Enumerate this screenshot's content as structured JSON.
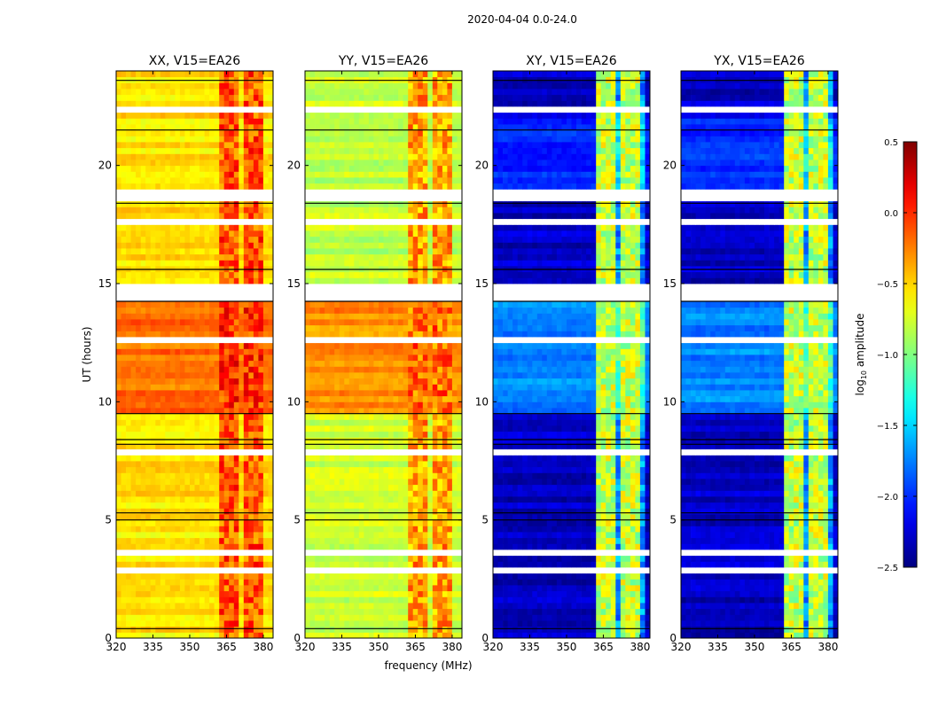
{
  "chart_data": {
    "type": "heatmap",
    "title": "2020-04-04 0.0-24.0",
    "xlabel": "frequency (MHz)",
    "ylabel": "UT (hours)",
    "xlim": [
      320,
      384
    ],
    "ylim": [
      0,
      24
    ],
    "xticks": [
      "320",
      "335",
      "350",
      "365",
      "380"
    ],
    "xtick_values": [
      320,
      335,
      350,
      365,
      380
    ],
    "yticks": [
      "0",
      "5",
      "10",
      "15",
      "20"
    ],
    "ytick_values": [
      0,
      5,
      10,
      15,
      20
    ],
    "colorbar": {
      "label": "log10 amplitude",
      "label_main": "log",
      "label_sub": "10",
      "label_rest": " amplitude",
      "colormap": "jet",
      "range": [
        -2.5,
        0.5
      ],
      "ticks": [
        "0.5",
        "0.0",
        "−0.5",
        "−1.0",
        "−1.5",
        "−2.0",
        "−2.5"
      ],
      "tick_values": [
        0.5,
        0.0,
        -0.5,
        -1.0,
        -1.5,
        -2.0,
        -2.5
      ]
    },
    "flagged_hours": [
      [
        14.4,
        14.95
      ],
      [
        22.25,
        22.45
      ],
      [
        18.7,
        18.8
      ],
      [
        17.6,
        17.7
      ],
      [
        7.8,
        7.9
      ],
      [
        3.5,
        3.6
      ],
      [
        2.9,
        3.0
      ],
      [
        12.5,
        12.6
      ]
    ],
    "black_line_hours": [
      0.4,
      5.0,
      5.3,
      8.2,
      8.4,
      9.5,
      14.25,
      15.6,
      18.4,
      21.5,
      23.6
    ],
    "rfi_bands_mhz": [
      [
        363,
        366
      ],
      [
        367,
        370.5
      ],
      [
        372,
        375.5
      ],
      [
        377,
        380.5
      ]
    ],
    "panels": [
      {
        "title": "XX, V15=EA26",
        "base_levels": [
          {
            "from": 0,
            "to": 9.5,
            "level": -0.55
          },
          {
            "from": 9.5,
            "to": 14.3,
            "level": -0.2
          },
          {
            "from": 14.3,
            "to": 24,
            "level": -0.55
          }
        ],
        "rfi_level": 0.05
      },
      {
        "title": "YY, V15=EA26",
        "base_levels": [
          {
            "from": 0,
            "to": 9.5,
            "level": -0.8
          },
          {
            "from": 9.5,
            "to": 14.3,
            "level": -0.3
          },
          {
            "from": 14.3,
            "to": 24,
            "level": -0.8
          }
        ],
        "rfi_level": -0.1
      },
      {
        "title": "XY, V15=EA26",
        "base_levels": [
          {
            "from": 0,
            "to": 9.5,
            "level": -2.3
          },
          {
            "from": 9.5,
            "to": 14.3,
            "level": -1.75
          },
          {
            "from": 14.3,
            "to": 19,
            "level": -2.3
          },
          {
            "from": 19,
            "to": 22,
            "level": -2.0
          },
          {
            "from": 22,
            "to": 24,
            "level": -2.3
          }
        ],
        "rfi_level": -0.8
      },
      {
        "title": "YX, V15=EA26",
        "base_levels": [
          {
            "from": 0,
            "to": 9.5,
            "level": -2.3
          },
          {
            "from": 9.5,
            "to": 14.3,
            "level": -1.75
          },
          {
            "from": 14.3,
            "to": 19,
            "level": -2.3
          },
          {
            "from": 19,
            "to": 22,
            "level": -2.0
          },
          {
            "from": 22,
            "to": 24,
            "level": -2.3
          }
        ],
        "rfi_level": -0.8
      }
    ]
  }
}
